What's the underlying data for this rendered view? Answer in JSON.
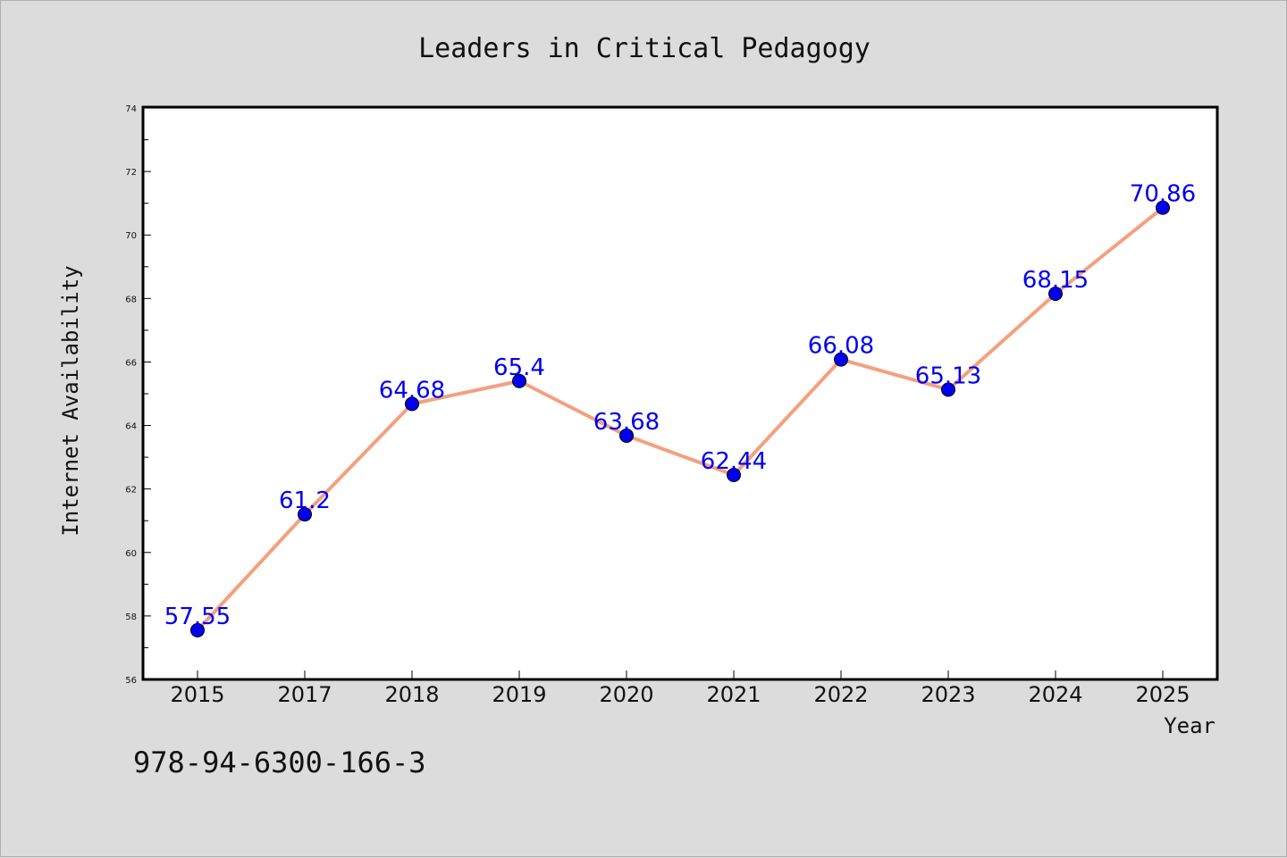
{
  "chart_data": {
    "type": "line",
    "title": "Leaders in Critical Pedagogy",
    "xlabel": "Year",
    "ylabel": "Internet Availability",
    "categories": [
      "2015",
      "2017",
      "2018",
      "2019",
      "2020",
      "2021",
      "2022",
      "2023",
      "2024",
      "2025"
    ],
    "series": [
      {
        "values": [
          57.55,
          61.2,
          64.68,
          65.4,
          63.68,
          62.44,
          66.08,
          65.13,
          68.15,
          70.86
        ],
        "labels": [
          "57.55",
          "61.2",
          "64.68",
          "65.4",
          "63.68",
          "62.44",
          "66.08",
          "65.13",
          "68.15",
          "70.86"
        ]
      }
    ],
    "ylim": [
      56,
      74
    ],
    "yticks": [
      56,
      58,
      60,
      62,
      64,
      66,
      68,
      70,
      72,
      74
    ],
    "grid": false,
    "legend": "none",
    "colors": {
      "line": "#f4a07f",
      "marker": "#0000ee",
      "label": "#0000ee",
      "background": "#dcdcdc",
      "plot_background": "#ffffff"
    }
  },
  "footer": {
    "isbn": "978-94-6300-166-3"
  }
}
